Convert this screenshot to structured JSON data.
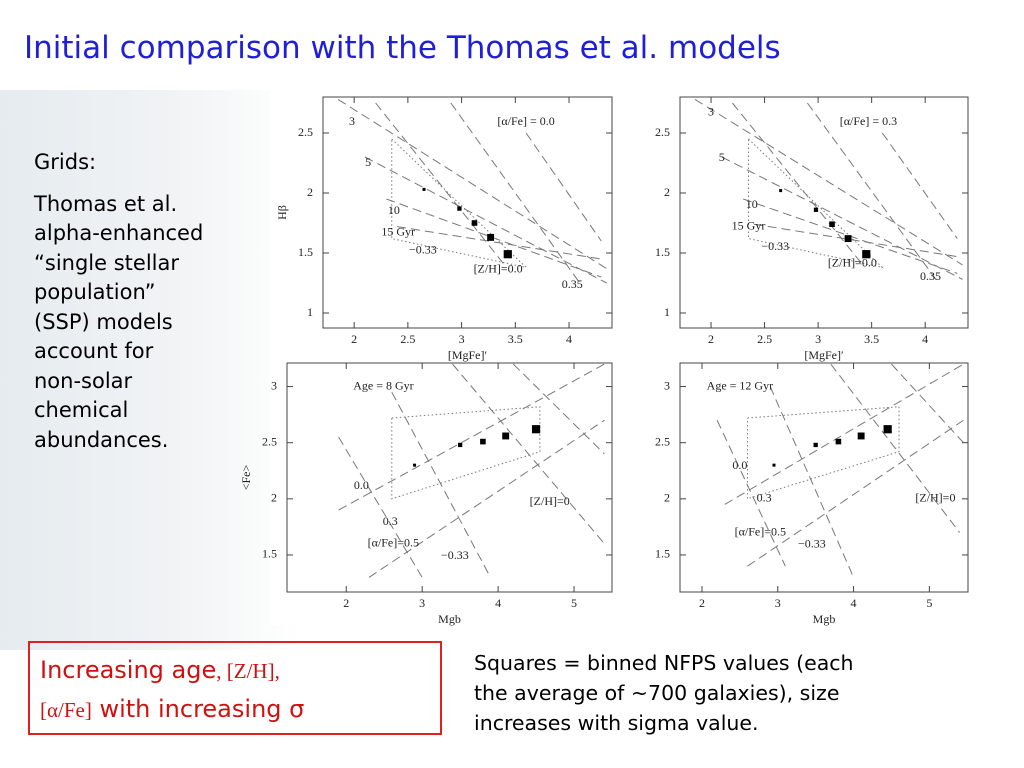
{
  "slide": {
    "title": "Initial comparison with the Thomas et al. models",
    "left_heading": "Grids:",
    "left_text": [
      "Thomas et al.",
      "alpha-enhanced",
      "“single stellar",
      "population”",
      "(SSP) models",
      "account for",
      "non-solar",
      "chemical",
      "abundances."
    ],
    "box_parts": [
      "Increasing age",
      ", [Z/H],",
      "[α/Fe]",
      " with increasing σ"
    ],
    "note_lines": [
      "Squares = binned NFPS values (each",
      "the average of ~700 galaxies),  size",
      "increases with sigma value."
    ]
  },
  "chart_data": [
    {
      "type": "scatter",
      "xlabel": "[MgFe]′",
      "ylabel": "Hβ",
      "xlim": [
        1.71,
        4.4
      ],
      "ylim": [
        0.875,
        2.8
      ],
      "xticks": [
        2,
        2.5,
        3,
        3.5,
        4
      ],
      "yticks": [
        1,
        1.5,
        2,
        2.5
      ],
      "series": [
        {
          "color": "#000000",
          "x": [
            2.65,
            2.98,
            3.12,
            3.27,
            3.43
          ],
          "values": [
            2.03,
            1.87,
            1.75,
            1.63,
            1.49
          ]
        }
      ],
      "model_lines": [
        {
          "x": [
            1.85,
            4.35
          ],
          "values": [
            2.78,
            1.37
          ]
        },
        {
          "x": [
            2.1,
            4.35
          ],
          "values": [
            2.3,
            1.25
          ]
        },
        {
          "x": [
            2.3,
            4.3
          ],
          "values": [
            1.95,
            1.3
          ]
        },
        {
          "x": [
            2.4,
            4.3
          ],
          "values": [
            1.72,
            1.45
          ]
        },
        {
          "x": [
            2.2,
            3.4
          ],
          "values": [
            2.75,
            1.4
          ]
        },
        {
          "x": [
            2.9,
            4.1
          ],
          "values": [
            2.75,
            1.25
          ]
        },
        {
          "x": [
            3.6,
            4.3
          ],
          "values": [
            2.5,
            1.6
          ]
        }
      ],
      "box": {
        "x": [
          2.35,
          3.6,
          2.35,
          2.35
        ],
        "values": [
          2.45,
          1.38,
          1.62,
          2.45
        ]
      },
      "annotations": [
        {
          "text": "3",
          "x": 1.98,
          "y": 2.59
        },
        {
          "text": "5",
          "x": 2.13,
          "y": 2.25
        },
        {
          "text": "10",
          "x": 2.37,
          "y": 1.85
        },
        {
          "text": "15 Gyr",
          "x": 2.41,
          "y": 1.67
        },
        {
          "text": "−0.33",
          "x": 2.64,
          "y": 1.52
        },
        {
          "text": "[Z/H]=0.0",
          "x": 3.34,
          "y": 1.36
        },
        {
          "text": "0.35",
          "x": 4.03,
          "y": 1.23
        },
        {
          "text": "[α/Fe] = 0.0",
          "x": 3.6,
          "y": 2.59
        }
      ]
    },
    {
      "type": "scatter",
      "xlabel": "[MgFe]′",
      "xlim": [
        1.71,
        4.4
      ],
      "ylim": [
        0.875,
        2.8
      ],
      "xticks": [
        2,
        2.5,
        3,
        3.5,
        4
      ],
      "yticks": [
        1,
        1.5,
        2,
        2.5
      ],
      "series": [
        {
          "color": "#000000",
          "x": [
            2.65,
            2.98,
            3.13,
            3.28,
            3.45
          ],
          "values": [
            2.02,
            1.86,
            1.74,
            1.62,
            1.49
          ]
        }
      ],
      "model_lines": [
        {
          "x": [
            1.85,
            4.35
          ],
          "values": [
            2.78,
            1.4
          ]
        },
        {
          "x": [
            2.1,
            4.35
          ],
          "values": [
            2.3,
            1.28
          ]
        },
        {
          "x": [
            2.3,
            4.3
          ],
          "values": [
            1.95,
            1.33
          ]
        },
        {
          "x": [
            2.4,
            4.3
          ],
          "values": [
            1.74,
            1.47
          ]
        },
        {
          "x": [
            2.2,
            3.4
          ],
          "values": [
            2.75,
            1.42
          ]
        },
        {
          "x": [
            2.9,
            4.1
          ],
          "values": [
            2.75,
            1.28
          ]
        },
        {
          "x": [
            3.6,
            4.3
          ],
          "values": [
            2.5,
            1.62
          ]
        }
      ],
      "box": {
        "x": [
          2.35,
          3.6,
          2.35,
          2.35
        ],
        "values": [
          2.45,
          1.38,
          1.62,
          2.45
        ]
      },
      "annotations": [
        {
          "text": "3",
          "x": 2.0,
          "y": 2.67
        },
        {
          "text": "5",
          "x": 2.1,
          "y": 2.29
        },
        {
          "text": "10",
          "x": 2.38,
          "y": 1.9
        },
        {
          "text": "15 Gyr",
          "x": 2.35,
          "y": 1.72
        },
        {
          "text": "−0.33",
          "x": 2.6,
          "y": 1.55
        },
        {
          "text": "[Z/H]=0.0",
          "x": 3.32,
          "y": 1.41
        },
        {
          "text": "0.35",
          "x": 4.05,
          "y": 1.3
        },
        {
          "text": "[α/Fe] = 0.3",
          "x": 3.47,
          "y": 2.59
        }
      ]
    },
    {
      "type": "scatter",
      "xlabel": "Mgb",
      "ylabel": "<Fe>",
      "xlim": [
        1.22,
        5.5
      ],
      "ylim": [
        1.17,
        3.21
      ],
      "xticks": [
        2,
        3,
        4,
        5
      ],
      "yticks": [
        1.5,
        2,
        2.5,
        3
      ],
      "series": [
        {
          "color": "#000000",
          "x": [
            2.9,
            3.5,
            3.8,
            4.1,
            4.5
          ],
          "values": [
            2.3,
            2.48,
            2.51,
            2.56,
            2.62
          ]
        }
      ],
      "model_lines": [
        {
          "x": [
            1.9,
            3.0
          ],
          "values": [
            2.55,
            1.3
          ]
        },
        {
          "x": [
            2.6,
            3.9
          ],
          "values": [
            2.95,
            1.3
          ]
        },
        {
          "x": [
            3.4,
            5.4
          ],
          "values": [
            3.2,
            1.6
          ]
        },
        {
          "x": [
            4.2,
            5.4
          ],
          "values": [
            3.2,
            2.4
          ]
        },
        {
          "x": [
            2.3,
            5.4
          ],
          "values": [
            1.3,
            2.7
          ]
        },
        {
          "x": [
            1.9,
            5.4
          ],
          "values": [
            1.9,
            3.2
          ]
        }
      ],
      "box": {
        "x": [
          2.6,
          4.55,
          4.55,
          2.6,
          2.6
        ],
        "values": [
          2.72,
          2.82,
          2.42,
          2.0,
          2.72
        ]
      },
      "annotations": [
        {
          "text": "Age = 8 Gyr",
          "x": 2.49,
          "y": 3.0
        },
        {
          "text": "0.0",
          "x": 2.2,
          "y": 2.11
        },
        {
          "text": "0.3",
          "x": 2.58,
          "y": 1.79
        },
        {
          "text": "[α/Fe]=0.5",
          "x": 2.62,
          "y": 1.6
        },
        {
          "text": "−0.33",
          "x": 3.43,
          "y": 1.49
        },
        {
          "text": "[Z/H]=0",
          "x": 4.68,
          "y": 1.97
        }
      ]
    },
    {
      "type": "scatter",
      "xlabel": "Mgb",
      "xlim": [
        1.71,
        5.51
      ],
      "ylim": [
        1.17,
        3.21
      ],
      "xticks": [
        2,
        3,
        4,
        5
      ],
      "yticks": [
        1.5,
        2,
        2.5,
        3
      ],
      "series": [
        {
          "color": "#000000",
          "x": [
            2.95,
            3.5,
            3.8,
            4.1,
            4.45
          ],
          "values": [
            2.3,
            2.48,
            2.51,
            2.56,
            2.62
          ]
        }
      ],
      "model_lines": [
        {
          "x": [
            2.2,
            3.1
          ],
          "values": [
            2.7,
            1.4
          ]
        },
        {
          "x": [
            2.9,
            4.0
          ],
          "values": [
            3.0,
            1.3
          ]
        },
        {
          "x": [
            3.7,
            5.4
          ],
          "values": [
            3.2,
            1.7
          ]
        },
        {
          "x": [
            4.5,
            5.45
          ],
          "values": [
            3.2,
            2.5
          ]
        },
        {
          "x": [
            2.6,
            5.45
          ],
          "values": [
            1.4,
            2.7
          ]
        },
        {
          "x": [
            2.3,
            5.45
          ],
          "values": [
            1.95,
            3.2
          ]
        }
      ],
      "box": {
        "x": [
          2.6,
          4.6,
          4.6,
          2.6,
          2.6
        ],
        "values": [
          2.72,
          2.82,
          2.42,
          2.0,
          2.72
        ]
      },
      "annotations": [
        {
          "text": "Age = 12 Gyr",
          "x": 2.5,
          "y": 3.0
        },
        {
          "text": "0.0",
          "x": 2.5,
          "y": 2.29
        },
        {
          "text": "0.3",
          "x": 2.82,
          "y": 2.0
        },
        {
          "text": "[α/Fe]=0.5",
          "x": 2.77,
          "y": 1.7
        },
        {
          "text": "−0.33",
          "x": 3.45,
          "y": 1.59
        },
        {
          "text": "[Z/H]=0",
          "x": 5.08,
          "y": 2.0
        }
      ]
    }
  ]
}
